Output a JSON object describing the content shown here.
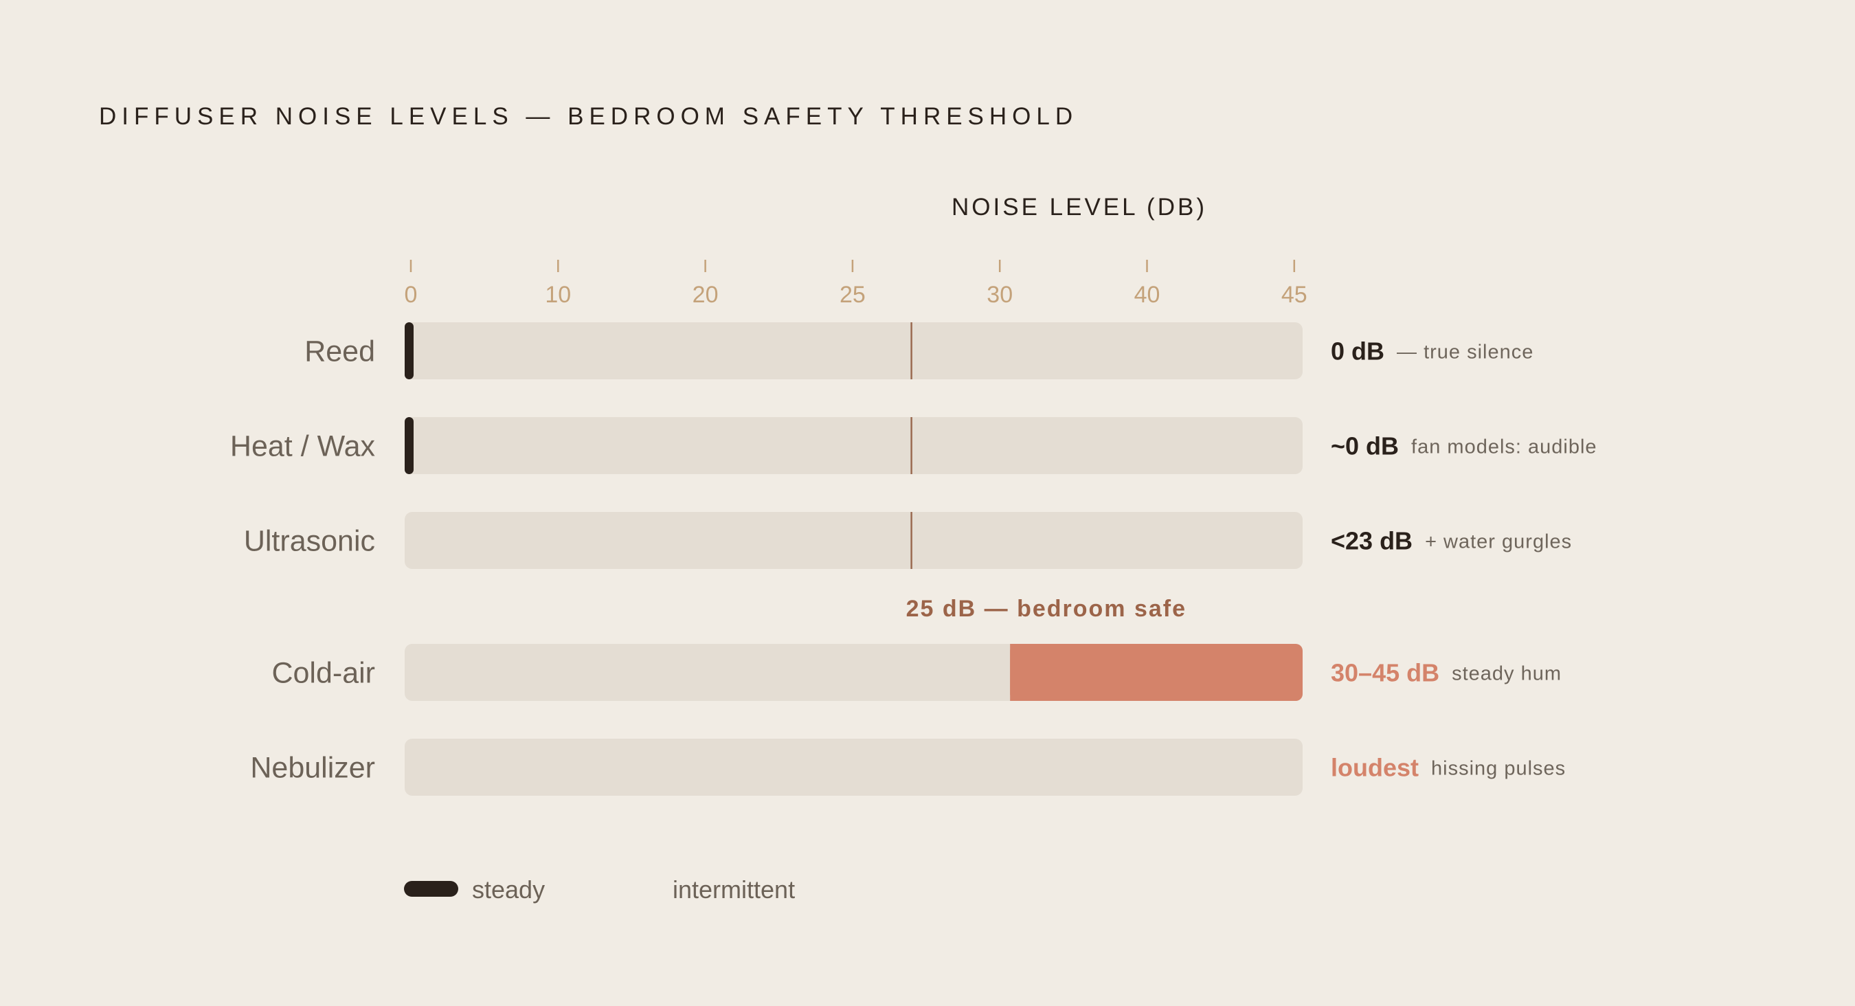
{
  "chart_data": {
    "type": "bar",
    "title": "DIFFUSER NOISE LEVELS — BEDROOM SAFETY THRESHOLD",
    "xlabel": "NOISE LEVEL (DB)",
    "ticks": [
      "0",
      "10",
      "20",
      "25",
      "30",
      "40",
      "45"
    ],
    "threshold": {
      "tick_index": 3.4,
      "label": "25 dB — bedroom safe"
    },
    "categories": [
      "Reed",
      "Heat / Wax",
      "Ultrasonic",
      "Cold-air",
      "Nebulizer"
    ],
    "series": [
      {
        "name": "steady",
        "color": "#2a211b"
      },
      {
        "name": "intermittent",
        "color": "#d4836a"
      }
    ],
    "bars": [
      {
        "category": "Reed",
        "value_label": "0 dB",
        "note": "— true silence",
        "start_tick": 0,
        "end_tick": 0,
        "style": "steady-marker",
        "label_color": "#2a211b"
      },
      {
        "category": "Heat / Wax",
        "value_label": "~0 dB",
        "note": "fan models: audible",
        "start_tick": 0,
        "end_tick": 0,
        "style": "steady-marker",
        "label_color": "#2a211b"
      },
      {
        "category": "Ultrasonic",
        "value_label": "<23 dB",
        "note": "+ water gurgles",
        "start_tick": null,
        "end_tick": null,
        "style": "none",
        "label_color": "#2a211b"
      },
      {
        "category": "Cold-air",
        "value_label": "30–45 dB",
        "note": "steady hum",
        "start_tick": 4.07,
        "end_tick": 6.1,
        "style": "range",
        "label_color": "#d4836a"
      },
      {
        "category": "Nebulizer",
        "value_label": "loudest",
        "note": "hissing pulses",
        "start_tick": null,
        "end_tick": null,
        "style": "none",
        "label_color": "#d4836a"
      }
    ],
    "legend": {
      "position": "bottom-left",
      "items": [
        "steady",
        "intermittent"
      ]
    },
    "grid": false
  }
}
